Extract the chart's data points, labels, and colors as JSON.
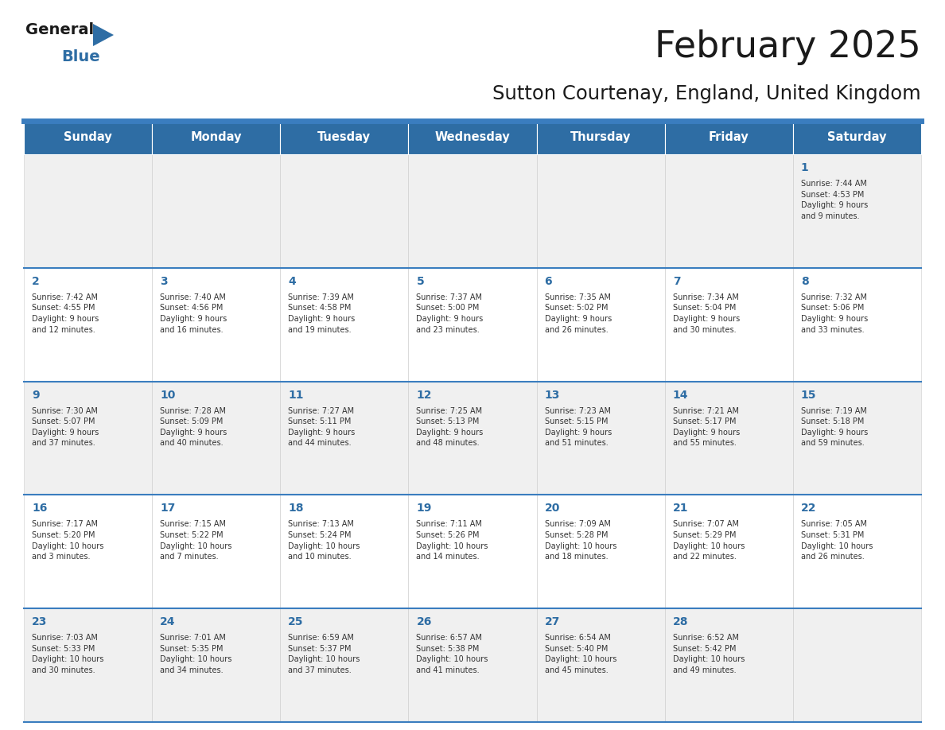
{
  "title": "February 2025",
  "subtitle": "Sutton Courtenay, England, United Kingdom",
  "header_bg": "#2E6DA4",
  "header_text_color": "#FFFFFF",
  "cell_bg_odd": "#F0F0F0",
  "cell_bg_even": "#FFFFFF",
  "cell_text_color": "#333333",
  "day_number_color": "#2E6DA4",
  "divider_color": "#3A7DBF",
  "days_of_week": [
    "Sunday",
    "Monday",
    "Tuesday",
    "Wednesday",
    "Thursday",
    "Friday",
    "Saturday"
  ],
  "weeks": [
    [
      {
        "day": null,
        "info": null
      },
      {
        "day": null,
        "info": null
      },
      {
        "day": null,
        "info": null
      },
      {
        "day": null,
        "info": null
      },
      {
        "day": null,
        "info": null
      },
      {
        "day": null,
        "info": null
      },
      {
        "day": 1,
        "info": "Sunrise: 7:44 AM\nSunset: 4:53 PM\nDaylight: 9 hours\nand 9 minutes."
      }
    ],
    [
      {
        "day": 2,
        "info": "Sunrise: 7:42 AM\nSunset: 4:55 PM\nDaylight: 9 hours\nand 12 minutes."
      },
      {
        "day": 3,
        "info": "Sunrise: 7:40 AM\nSunset: 4:56 PM\nDaylight: 9 hours\nand 16 minutes."
      },
      {
        "day": 4,
        "info": "Sunrise: 7:39 AM\nSunset: 4:58 PM\nDaylight: 9 hours\nand 19 minutes."
      },
      {
        "day": 5,
        "info": "Sunrise: 7:37 AM\nSunset: 5:00 PM\nDaylight: 9 hours\nand 23 minutes."
      },
      {
        "day": 6,
        "info": "Sunrise: 7:35 AM\nSunset: 5:02 PM\nDaylight: 9 hours\nand 26 minutes."
      },
      {
        "day": 7,
        "info": "Sunrise: 7:34 AM\nSunset: 5:04 PM\nDaylight: 9 hours\nand 30 minutes."
      },
      {
        "day": 8,
        "info": "Sunrise: 7:32 AM\nSunset: 5:06 PM\nDaylight: 9 hours\nand 33 minutes."
      }
    ],
    [
      {
        "day": 9,
        "info": "Sunrise: 7:30 AM\nSunset: 5:07 PM\nDaylight: 9 hours\nand 37 minutes."
      },
      {
        "day": 10,
        "info": "Sunrise: 7:28 AM\nSunset: 5:09 PM\nDaylight: 9 hours\nand 40 minutes."
      },
      {
        "day": 11,
        "info": "Sunrise: 7:27 AM\nSunset: 5:11 PM\nDaylight: 9 hours\nand 44 minutes."
      },
      {
        "day": 12,
        "info": "Sunrise: 7:25 AM\nSunset: 5:13 PM\nDaylight: 9 hours\nand 48 minutes."
      },
      {
        "day": 13,
        "info": "Sunrise: 7:23 AM\nSunset: 5:15 PM\nDaylight: 9 hours\nand 51 minutes."
      },
      {
        "day": 14,
        "info": "Sunrise: 7:21 AM\nSunset: 5:17 PM\nDaylight: 9 hours\nand 55 minutes."
      },
      {
        "day": 15,
        "info": "Sunrise: 7:19 AM\nSunset: 5:18 PM\nDaylight: 9 hours\nand 59 minutes."
      }
    ],
    [
      {
        "day": 16,
        "info": "Sunrise: 7:17 AM\nSunset: 5:20 PM\nDaylight: 10 hours\nand 3 minutes."
      },
      {
        "day": 17,
        "info": "Sunrise: 7:15 AM\nSunset: 5:22 PM\nDaylight: 10 hours\nand 7 minutes."
      },
      {
        "day": 18,
        "info": "Sunrise: 7:13 AM\nSunset: 5:24 PM\nDaylight: 10 hours\nand 10 minutes."
      },
      {
        "day": 19,
        "info": "Sunrise: 7:11 AM\nSunset: 5:26 PM\nDaylight: 10 hours\nand 14 minutes."
      },
      {
        "day": 20,
        "info": "Sunrise: 7:09 AM\nSunset: 5:28 PM\nDaylight: 10 hours\nand 18 minutes."
      },
      {
        "day": 21,
        "info": "Sunrise: 7:07 AM\nSunset: 5:29 PM\nDaylight: 10 hours\nand 22 minutes."
      },
      {
        "day": 22,
        "info": "Sunrise: 7:05 AM\nSunset: 5:31 PM\nDaylight: 10 hours\nand 26 minutes."
      }
    ],
    [
      {
        "day": 23,
        "info": "Sunrise: 7:03 AM\nSunset: 5:33 PM\nDaylight: 10 hours\nand 30 minutes."
      },
      {
        "day": 24,
        "info": "Sunrise: 7:01 AM\nSunset: 5:35 PM\nDaylight: 10 hours\nand 34 minutes."
      },
      {
        "day": 25,
        "info": "Sunrise: 6:59 AM\nSunset: 5:37 PM\nDaylight: 10 hours\nand 37 minutes."
      },
      {
        "day": 26,
        "info": "Sunrise: 6:57 AM\nSunset: 5:38 PM\nDaylight: 10 hours\nand 41 minutes."
      },
      {
        "day": 27,
        "info": "Sunrise: 6:54 AM\nSunset: 5:40 PM\nDaylight: 10 hours\nand 45 minutes."
      },
      {
        "day": 28,
        "info": "Sunrise: 6:52 AM\nSunset: 5:42 PM\nDaylight: 10 hours\nand 49 minutes."
      },
      {
        "day": null,
        "info": null
      }
    ]
  ],
  "logo_text_general": "General",
  "logo_text_blue": "Blue",
  "logo_triangle_color": "#2E6DA4",
  "logo_general_color": "#1A1A1A"
}
